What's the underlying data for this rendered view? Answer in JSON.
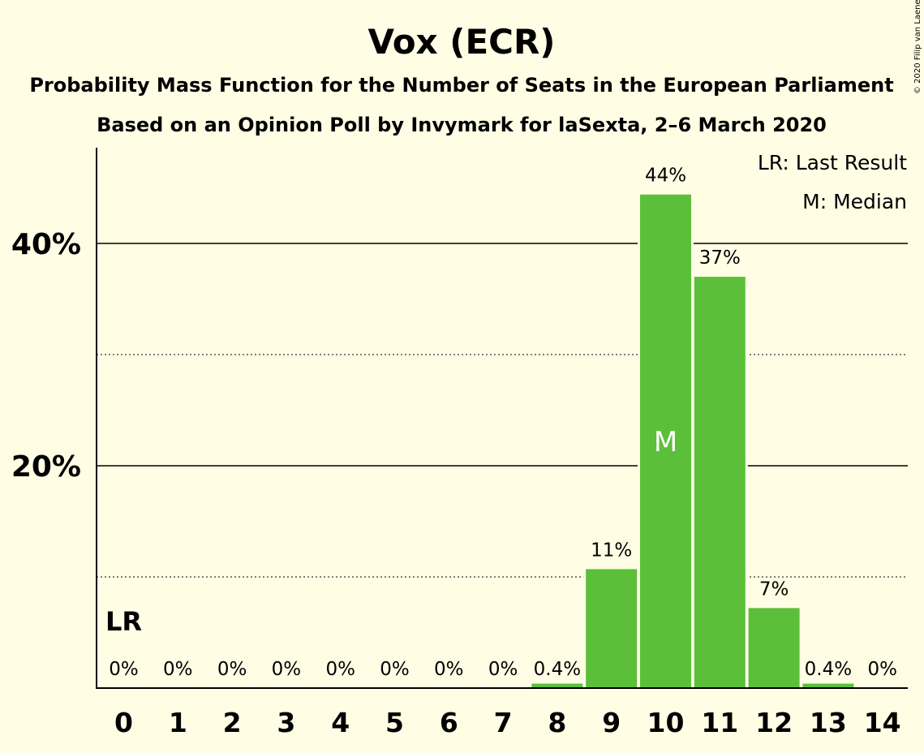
{
  "chart_data": {
    "type": "bar",
    "title": "Vox (ECR)",
    "subtitle_lines": [
      "Probability Mass Function for the Number of Seats in the European Parliament",
      "Based on an Opinion Poll by Invymark for laSexta, 2–6 March 2020"
    ],
    "copyright": "© 2020 Filip van Laenen",
    "categories": [
      "0",
      "1",
      "2",
      "3",
      "4",
      "5",
      "6",
      "7",
      "8",
      "9",
      "10",
      "11",
      "12",
      "13",
      "14"
    ],
    "values": [
      0,
      0,
      0,
      0,
      0,
      0,
      0,
      0,
      0.4,
      10.7,
      44.4,
      37.0,
      7.2,
      0.4,
      0
    ],
    "data_labels": [
      "0%",
      "0%",
      "0%",
      "0%",
      "0%",
      "0%",
      "0%",
      "0%",
      "0.4%",
      "11%",
      "44%",
      "37%",
      "7%",
      "0.4%",
      "0%"
    ],
    "ylim": [
      0,
      48
    ],
    "yticks": [
      {
        "value": 20,
        "label": "20%"
      },
      {
        "value": 40,
        "label": "40%"
      }
    ],
    "minor_gridlines": [
      10,
      30
    ],
    "bar_color": "#5CBF3A",
    "background_color": "#FFFEE5",
    "last_result": {
      "category": "0",
      "marker": "LR"
    },
    "median": {
      "category": "10",
      "marker": "M"
    },
    "legend": {
      "position": "top-right",
      "entries": [
        "LR: Last Result",
        "M: Median"
      ]
    }
  }
}
